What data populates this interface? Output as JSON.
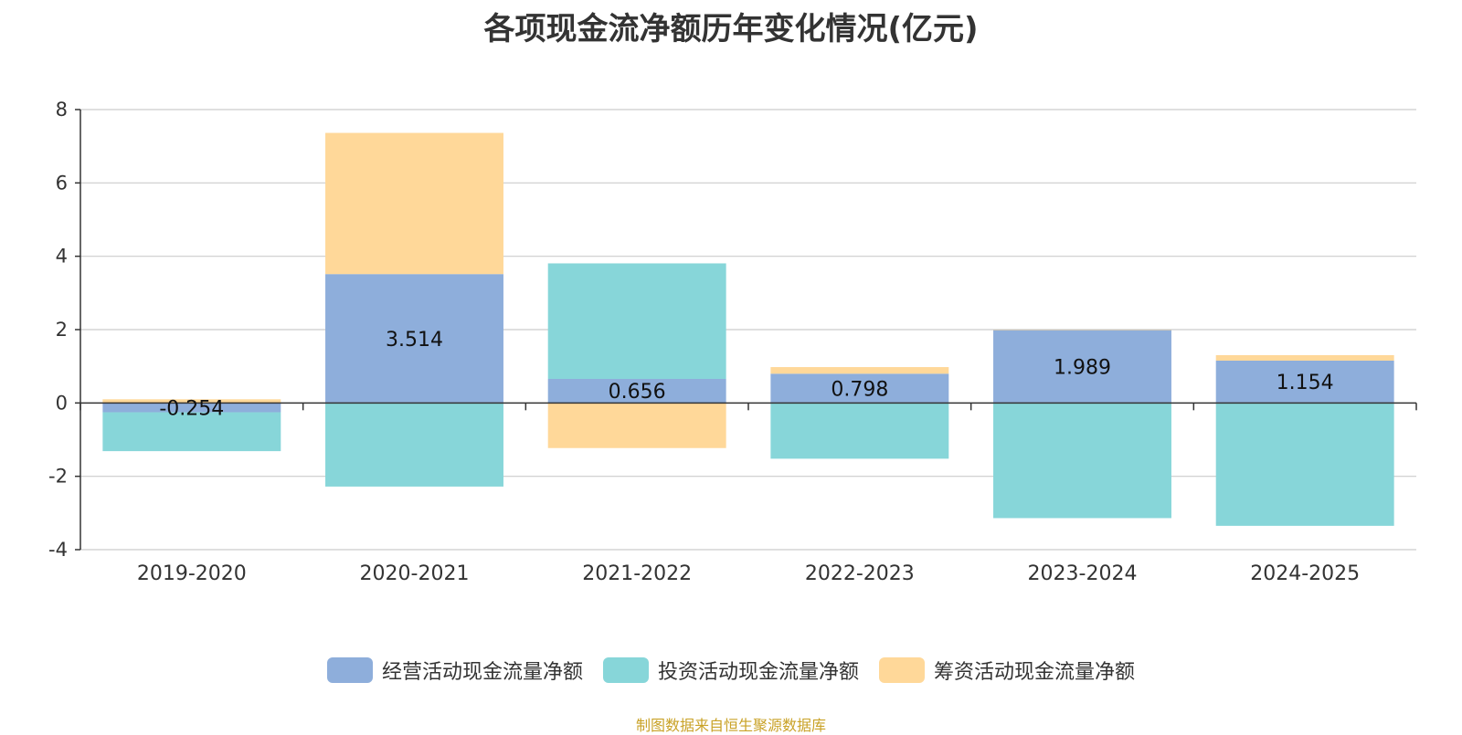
{
  "chart_data": {
    "type": "bar",
    "stacked": true,
    "title": "各项现金流净额历年变化情况(亿元)",
    "categories": [
      "2019-2020",
      "2020-2021",
      "2021-2022",
      "2022-2023",
      "2023-2024",
      "2024-2025"
    ],
    "ylim": [
      -4,
      8
    ],
    "yticks": [
      -4,
      -2,
      0,
      2,
      4,
      6,
      8
    ],
    "grid": true,
    "legend_position": "bottom-center",
    "series": [
      {
        "name": "经营活动现金流量净额",
        "color": "#8eaedb",
        "values": [
          -0.254,
          3.514,
          0.656,
          0.798,
          1.989,
          1.154
        ],
        "labels": [
          "-0.254",
          "3.514",
          "0.656",
          "0.798",
          "1.989",
          "1.154"
        ]
      },
      {
        "name": "投资活动现金流量净额",
        "color": "#87d6d9",
        "values": [
          -1.06,
          -2.28,
          3.15,
          -1.52,
          -3.14,
          -3.35
        ]
      },
      {
        "name": "筹资活动现金流量净额",
        "color": "#ffd899",
        "values": [
          0.1,
          3.85,
          -1.23,
          0.18,
          0.01,
          0.15
        ]
      }
    ]
  },
  "source_note": "制图数据来自恒生聚源数据库"
}
